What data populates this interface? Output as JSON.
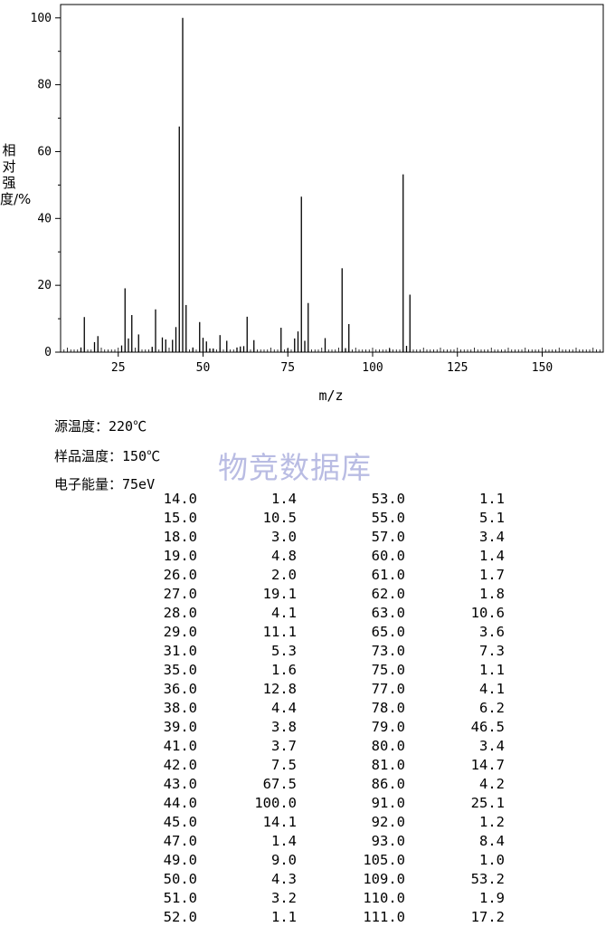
{
  "chart_data": {
    "type": "bar",
    "xlabel": "m/z",
    "ylabel": "相对强度/%",
    "xlim": [
      8,
      168
    ],
    "ylim": [
      0,
      104
    ],
    "xticks": [
      25,
      50,
      75,
      100,
      125,
      150
    ],
    "yticks": [
      0,
      20,
      40,
      60,
      80,
      100
    ],
    "grid": false,
    "peaks": {
      "mz": [
        14,
        15,
        18,
        19,
        26,
        27,
        28,
        29,
        31,
        35,
        36,
        38,
        39,
        41,
        42,
        43,
        44,
        45,
        47,
        49,
        50,
        51,
        52,
        53,
        55,
        57,
        60,
        61,
        62,
        63,
        65,
        73,
        75,
        77,
        78,
        79,
        80,
        81,
        86,
        91,
        92,
        93,
        105,
        109,
        110,
        111
      ],
      "intensity": [
        1.4,
        10.5,
        3.0,
        4.8,
        2.0,
        19.1,
        4.1,
        11.1,
        5.3,
        1.6,
        12.8,
        4.4,
        3.8,
        3.7,
        7.5,
        67.5,
        100.0,
        14.1,
        1.4,
        9.0,
        4.3,
        3.2,
        1.1,
        1.1,
        5.1,
        3.4,
        1.4,
        1.7,
        1.8,
        10.6,
        3.6,
        7.3,
        1.1,
        4.1,
        6.2,
        46.5,
        3.4,
        14.7,
        4.2,
        25.1,
        1.2,
        8.4,
        1.0,
        53.2,
        1.9,
        17.2
      ]
    }
  },
  "meta": {
    "source_temp": "源温度：220℃",
    "sample_temp": "样品温度：150℃",
    "electron_energy": "电子能量：75eV"
  },
  "watermark": "物竞数据库",
  "table": {
    "left": [
      [
        "14.0",
        "1.4"
      ],
      [
        "15.0",
        "10.5"
      ],
      [
        "18.0",
        "3.0"
      ],
      [
        "19.0",
        "4.8"
      ],
      [
        "26.0",
        "2.0"
      ],
      [
        "27.0",
        "19.1"
      ],
      [
        "28.0",
        "4.1"
      ],
      [
        "29.0",
        "11.1"
      ],
      [
        "31.0",
        "5.3"
      ],
      [
        "35.0",
        "1.6"
      ],
      [
        "36.0",
        "12.8"
      ],
      [
        "38.0",
        "4.4"
      ],
      [
        "39.0",
        "3.8"
      ],
      [
        "41.0",
        "3.7"
      ],
      [
        "42.0",
        "7.5"
      ],
      [
        "43.0",
        "67.5"
      ],
      [
        "44.0",
        "100.0"
      ],
      [
        "45.0",
        "14.1"
      ],
      [
        "47.0",
        "1.4"
      ],
      [
        "49.0",
        "9.0"
      ],
      [
        "50.0",
        "4.3"
      ],
      [
        "51.0",
        "3.2"
      ],
      [
        "52.0",
        "1.1"
      ]
    ],
    "right": [
      [
        "53.0",
        "1.1"
      ],
      [
        "55.0",
        "5.1"
      ],
      [
        "57.0",
        "3.4"
      ],
      [
        "60.0",
        "1.4"
      ],
      [
        "61.0",
        "1.7"
      ],
      [
        "62.0",
        "1.8"
      ],
      [
        "63.0",
        "10.6"
      ],
      [
        "65.0",
        "3.6"
      ],
      [
        "73.0",
        "7.3"
      ],
      [
        "75.0",
        "1.1"
      ],
      [
        "77.0",
        "4.1"
      ],
      [
        "78.0",
        "6.2"
      ],
      [
        "79.0",
        "46.5"
      ],
      [
        "80.0",
        "3.4"
      ],
      [
        "81.0",
        "14.7"
      ],
      [
        "86.0",
        "4.2"
      ],
      [
        "91.0",
        "25.1"
      ],
      [
        "92.0",
        "1.2"
      ],
      [
        "93.0",
        "8.4"
      ],
      [
        "105.0",
        "1.0"
      ],
      [
        "109.0",
        "53.2"
      ],
      [
        "110.0",
        "1.9"
      ],
      [
        "111.0",
        "17.2"
      ]
    ]
  }
}
